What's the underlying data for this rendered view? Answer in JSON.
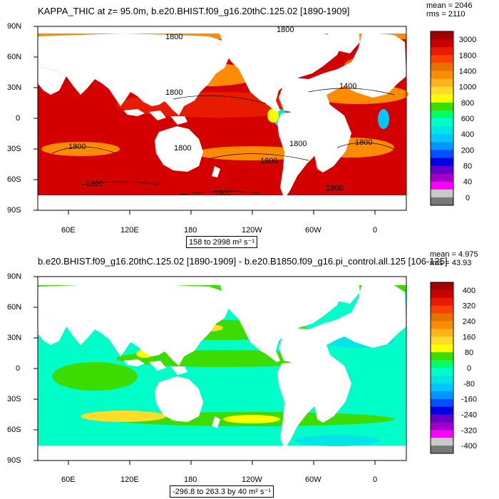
{
  "panel1": {
    "title": "KAPPA_THIC at z=  95.0m, b.e20.BHIST.f09_g16.20thC.125.02 [1890-1909]",
    "mean": "mean = 2046",
    "rms": "rms = 2110",
    "range": "158 to 2998 m² s⁻¹",
    "colorbar": {
      "labels": [
        "3000",
        "1800",
        "1400",
        "1000",
        "800",
        "600",
        "400",
        "200",
        "80",
        "40",
        "0"
      ],
      "colors": [
        "#a50000",
        "#c80000",
        "#e61b00",
        "#ff4000",
        "#e67300",
        "#ff8c00",
        "#ffb41e",
        "#ffdc28",
        "#ffff00",
        "#3cdc00",
        "#00ff64",
        "#00ffc8",
        "#00e6e6",
        "#00c8ff",
        "#0096ff",
        "#0050ff",
        "#0000e6",
        "#6400c8",
        "#a000c8",
        "#ff00ff",
        "#c8c8c8",
        "#787878"
      ]
    },
    "contour_labels": [
      "1800",
      "1800",
      "1800",
      "1400",
      "1800",
      "1800",
      "1800",
      "1800",
      "1800",
      "1800",
      "1800",
      "1800"
    ]
  },
  "panel2": {
    "title": "b.e20.BHIST.f09_g16.20thC.125.02 [1890-1909] - b.e20.B1850.f09_g16.pi_control.all.125 [106-125]",
    "mean": "mean = 4.975",
    "rms": "rms = 43.93",
    "range": "-296.8 to 263.3 by 40 m² s⁻¹",
    "colorbar": {
      "labels": [
        "400",
        "320",
        "240",
        "160",
        "80",
        "0",
        "-80",
        "-160",
        "-240",
        "-320",
        "-400"
      ],
      "colors": [
        "#a50000",
        "#c80000",
        "#e61b00",
        "#ff4000",
        "#e67300",
        "#ff8c00",
        "#ffb41e",
        "#ffdc28",
        "#ffff00",
        "#3cdc00",
        "#00ff64",
        "#00ffc8",
        "#00e6e6",
        "#00c8ff",
        "#0096ff",
        "#0050ff",
        "#0000e6",
        "#6400c8",
        "#a000c8",
        "#ff00ff",
        "#c8c8c8",
        "#787878"
      ]
    }
  },
  "axes": {
    "lat_labels": [
      "90N",
      "60N",
      "30N",
      "0",
      "30S",
      "60S",
      "90S"
    ],
    "lon_labels": [
      "60E",
      "120E",
      "180",
      "120W",
      "60W",
      "0"
    ]
  }
}
